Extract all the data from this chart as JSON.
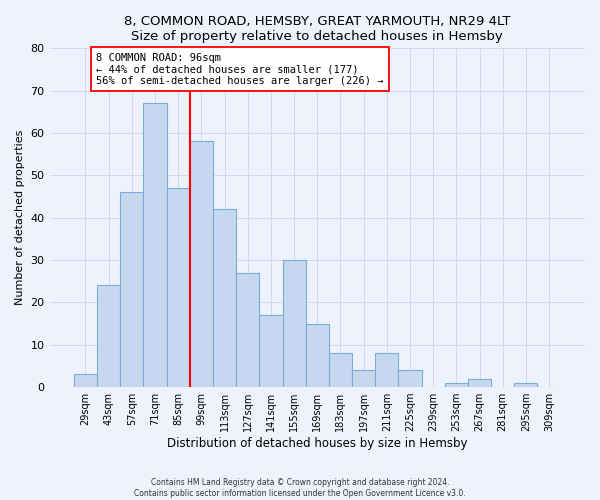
{
  "title1": "8, COMMON ROAD, HEMSBY, GREAT YARMOUTH, NR29 4LT",
  "title2": "Size of property relative to detached houses in Hemsby",
  "xlabel": "Distribution of detached houses by size in Hemsby",
  "ylabel": "Number of detached properties",
  "categories": [
    "29sqm",
    "43sqm",
    "57sqm",
    "71sqm",
    "85sqm",
    "99sqm",
    "113sqm",
    "127sqm",
    "141sqm",
    "155sqm",
    "169sqm",
    "183sqm",
    "197sqm",
    "211sqm",
    "225sqm",
    "239sqm",
    "253sqm",
    "267sqm",
    "281sqm",
    "295sqm",
    "309sqm"
  ],
  "values": [
    3,
    24,
    46,
    67,
    47,
    58,
    42,
    27,
    17,
    30,
    15,
    8,
    4,
    8,
    4,
    0,
    1,
    2,
    0,
    1,
    0
  ],
  "bar_color": "#c5d8f0",
  "bar_edge_color": "#7aadd4",
  "vline_x": 4.5,
  "vline_color": "red",
  "annotation_text": "8 COMMON ROAD: 96sqm\n← 44% of detached houses are smaller (177)\n56% of semi-detached houses are larger (226) →",
  "annotation_box_color": "white",
  "annotation_box_edge_color": "red",
  "ylim": [
    0,
    80
  ],
  "yticks": [
    0,
    10,
    20,
    30,
    40,
    50,
    60,
    70,
    80
  ],
  "footer1": "Contains HM Land Registry data © Crown copyright and database right 2024.",
  "footer2": "Contains public sector information licensed under the Open Government Licence v3.0.",
  "bg_color": "#eef2fc",
  "grid_color": "#d0d8f0"
}
